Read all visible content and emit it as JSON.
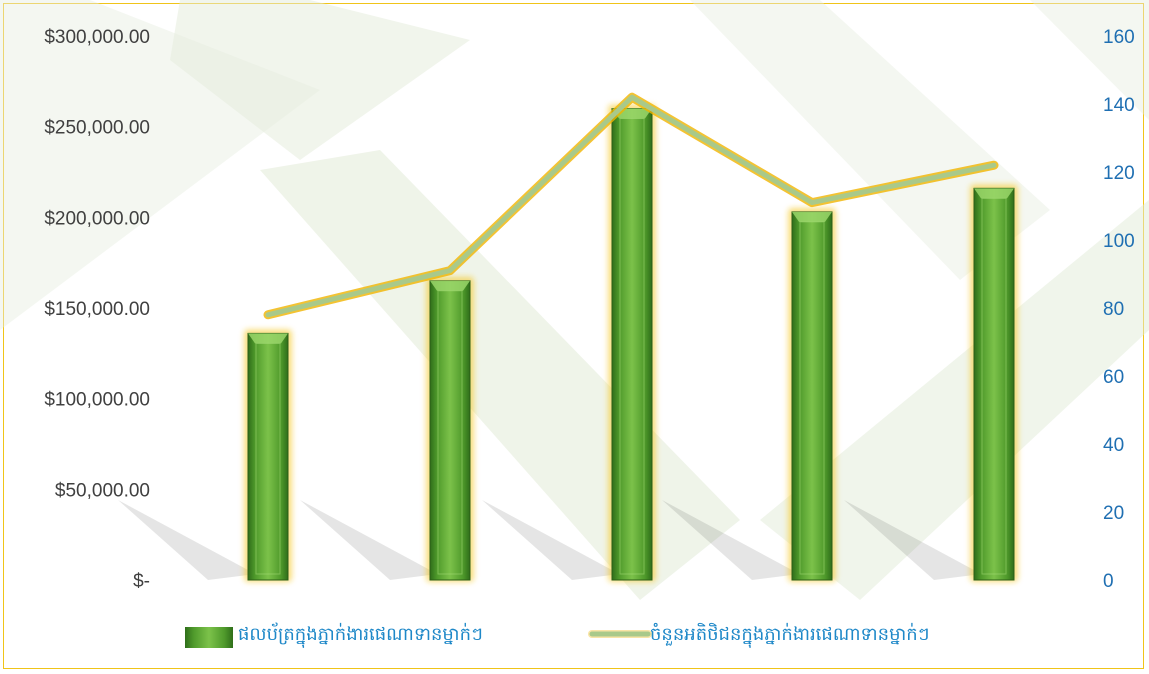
{
  "chart_data": {
    "type": "bar",
    "categories": [
      "",
      "",
      "",
      "",
      ""
    ],
    "series": [
      {
        "name": "ផលប័ត្រក្នុងភ្នាក់ងារផេណាទានម្នាក់ៗ",
        "type": "bar",
        "axis": "left",
        "values": [
          136000,
          165000,
          260000,
          203000,
          216000
        ],
        "color": "#5aa832"
      },
      {
        "name": "ចំនួនអតិថិជនក្នុងភ្នាក់ងារផេណាទានម្នាក់ៗ",
        "type": "line",
        "axis": "right",
        "values": [
          78,
          91,
          142,
          111,
          122
        ],
        "color": "#a9c98a"
      }
    ],
    "y_left": {
      "ylim": [
        0,
        300000
      ],
      "ticks": [
        0,
        50000,
        100000,
        150000,
        200000,
        250000,
        300000
      ],
      "tick_labels": [
        "$-",
        "$50,000.00",
        "$100,000.00",
        "$150,000.00",
        "$200,000.00",
        "$250,000.00",
        "$300,000.00"
      ]
    },
    "y_right": {
      "ylim": [
        0,
        160
      ],
      "ticks": [
        0,
        20,
        40,
        60,
        80,
        100,
        120,
        140,
        160
      ],
      "tick_labels": [
        "0",
        "20",
        "40",
        "60",
        "80",
        "100",
        "120",
        "140",
        "160"
      ]
    },
    "title": "",
    "xlabel": "",
    "ylabel": "",
    "legend_position": "bottom",
    "grid": false,
    "colors": {
      "border": "#f0c419",
      "bar": "#5aa832",
      "bar_glow": "#f5c518",
      "line": "#a9c98a",
      "line_glow": "#f0b400",
      "right_axis_text": "#1f6fb2",
      "left_axis_text": "#404040",
      "legend_text": "#1e88c8"
    }
  }
}
